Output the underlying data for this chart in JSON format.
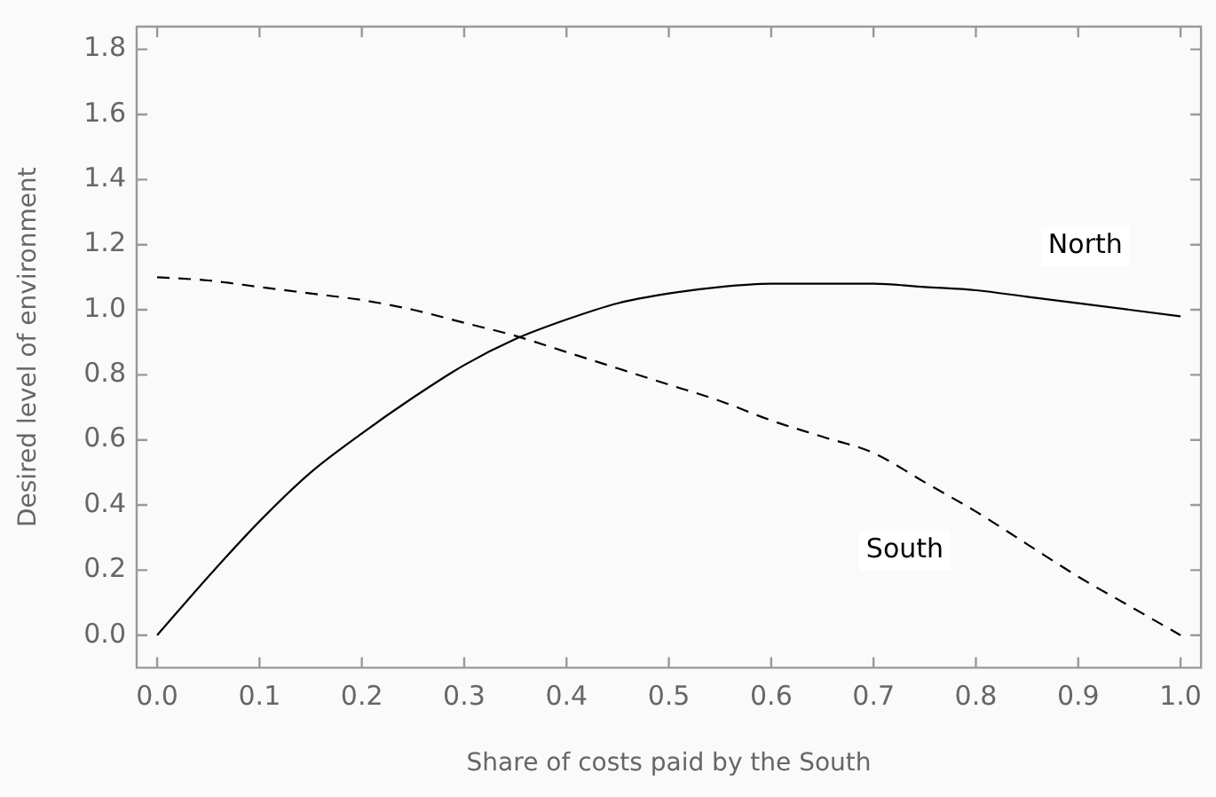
{
  "chart_data": {
    "type": "line",
    "xlabel": "Share of costs paid by the South",
    "ylabel": "Desired level of environment",
    "x": [
      0,
      0.05,
      0.1,
      0.15,
      0.2,
      0.25,
      0.3,
      0.35,
      0.4,
      0.45,
      0.5,
      0.55,
      0.6,
      0.65,
      0.7,
      0.75,
      0.8,
      0.85,
      0.9,
      0.95,
      1.0
    ],
    "series": [
      {
        "name": "North",
        "color": "#000000",
        "line_style": "solid",
        "values": [
          0,
          0.18,
          0.35,
          0.5,
          0.62,
          0.73,
          0.83,
          0.91,
          0.97,
          1.02,
          1.05,
          1.07,
          1.08,
          1.08,
          1.08,
          1.07,
          1.06,
          1.04,
          1.02,
          1.0,
          0.98
        ]
      },
      {
        "name": "South",
        "color": "#000000",
        "line_style": "dashed",
        "values": [
          1.1,
          1.09,
          1.07,
          1.05,
          1.03,
          1.0,
          0.96,
          0.92,
          0.87,
          0.82,
          0.77,
          0.72,
          0.66,
          0.61,
          0.56,
          0.47,
          0.38,
          0.28,
          0.18,
          0.09,
          0.0
        ]
      }
    ],
    "xlim": [
      -0.02,
      1.02
    ],
    "xticks": [
      {
        "value": 0,
        "label": "0.0"
      },
      0.1,
      0.2,
      0.3,
      0.4,
      0.5,
      0.6,
      0.7,
      0.8,
      0.9,
      {
        "value": 1,
        "label": "1.0"
      }
    ],
    "ylim": [
      -0.1,
      1.87
    ],
    "yticks": [
      {
        "value": 0,
        "label": "0.0"
      },
      0.2,
      0.4,
      0.6,
      0.8,
      {
        "value": 1,
        "label": "1.0"
      },
      1.2,
      1.4,
      1.6,
      1.8
    ],
    "grid": false,
    "legend": false,
    "marker": "none"
  }
}
